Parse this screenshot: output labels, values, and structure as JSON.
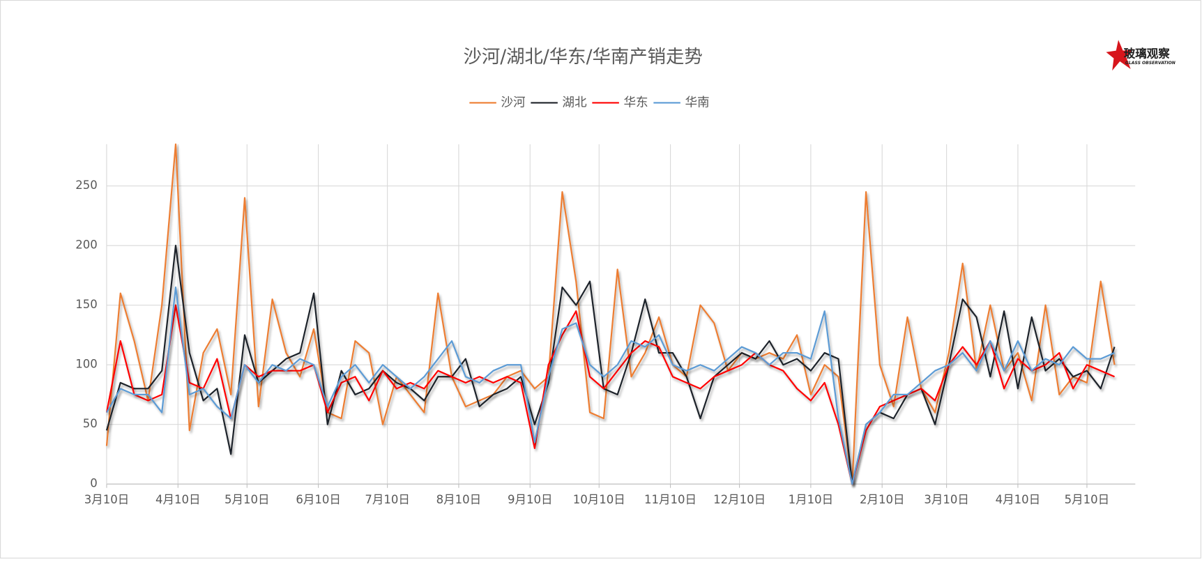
{
  "chart_data": {
    "type": "line",
    "title": "沙河/湖北/华东/华南产销走势",
    "logo": {
      "name": "玻璃观察",
      "sub": "GLASS OBSERVATION"
    },
    "x": [
      0,
      6,
      12,
      18,
      24,
      30,
      36,
      42,
      48,
      54,
      60,
      66,
      72,
      78,
      84,
      90,
      96,
      102,
      108,
      114,
      120,
      126,
      132,
      138,
      144,
      150,
      156,
      162,
      168,
      174,
      180,
      186,
      192,
      198,
      204,
      210,
      216,
      222,
      228,
      234,
      240,
      246,
      252,
      258,
      264,
      270,
      276,
      282,
      288,
      294,
      300,
      306,
      312,
      318,
      324,
      330,
      336,
      342,
      348,
      354,
      360,
      366,
      372,
      378,
      384,
      390,
      396,
      402,
      408,
      414,
      420,
      426,
      432,
      438
    ],
    "xlim": [
      0,
      447
    ],
    "xticks": [
      {
        "value": 0,
        "label": "3月10日"
      },
      {
        "value": 31,
        "label": "4月10日"
      },
      {
        "value": 61,
        "label": "5月10日"
      },
      {
        "value": 92,
        "label": "6月10日"
      },
      {
        "value": 122,
        "label": "7月10日"
      },
      {
        "value": 153,
        "label": "8月10日"
      },
      {
        "value": 184,
        "label": "9月10日"
      },
      {
        "value": 214,
        "label": "10月10日"
      },
      {
        "value": 245,
        "label": "11月10日"
      },
      {
        "value": 275,
        "label": "12月10日"
      },
      {
        "value": 306,
        "label": "1月10日"
      },
      {
        "value": 337,
        "label": "2月10日"
      },
      {
        "value": 365,
        "label": "3月10日"
      },
      {
        "value": 396,
        "label": "4月10日"
      },
      {
        "value": 426,
        "label": "5月10日"
      }
    ],
    "ylim": [
      0,
      285
    ],
    "yticks": [
      0,
      50,
      100,
      150,
      200,
      250
    ],
    "grid": true,
    "legend": "top",
    "series": [
      {
        "name": "沙河",
        "color": "#ed7d31",
        "values": [
          32,
          160,
          120,
          70,
          150,
          285,
          45,
          110,
          130,
          75,
          240,
          65,
          155,
          110,
          90,
          130,
          60,
          55,
          120,
          110,
          50,
          90,
          75,
          60,
          160,
          90,
          65,
          70,
          75,
          90,
          95,
          80,
          90,
          245,
          170,
          60,
          55,
          180,
          90,
          110,
          140,
          100,
          90,
          150,
          135,
          95,
          110,
          105,
          110,
          105,
          125,
          75,
          100,
          90,
          0,
          245,
          100,
          65,
          140,
          80,
          60,
          110,
          185,
          95,
          150,
          95,
          110,
          70,
          150,
          75,
          90,
          85,
          170,
          100
        ]
      },
      {
        "name": "湖北",
        "color": "#1f2329",
        "values": [
          45,
          85,
          80,
          80,
          95,
          200,
          110,
          70,
          80,
          25,
          125,
          85,
          95,
          105,
          110,
          160,
          50,
          95,
          75,
          80,
          95,
          85,
          80,
          70,
          90,
          90,
          105,
          65,
          75,
          80,
          90,
          50,
          85,
          165,
          150,
          170,
          80,
          75,
          110,
          155,
          110,
          110,
          90,
          55,
          90,
          100,
          110,
          105,
          120,
          100,
          105,
          95,
          110,
          105,
          0,
          50,
          60,
          55,
          75,
          80,
          50,
          100,
          155,
          140,
          90,
          145,
          80,
          140,
          95,
          105,
          90,
          95,
          80,
          115
        ]
      },
      {
        "name": "华东",
        "color": "#ff0000",
        "values": [
          60,
          120,
          75,
          70,
          75,
          150,
          85,
          80,
          105,
          55,
          100,
          90,
          95,
          95,
          95,
          100,
          60,
          85,
          90,
          70,
          95,
          80,
          85,
          80,
          95,
          90,
          85,
          90,
          85,
          90,
          85,
          30,
          100,
          125,
          145,
          90,
          80,
          95,
          110,
          120,
          115,
          90,
          85,
          80,
          90,
          95,
          100,
          110,
          100,
          95,
          80,
          70,
          85,
          50,
          0,
          45,
          65,
          70,
          75,
          80,
          70,
          100,
          115,
          100,
          120,
          80,
          105,
          95,
          100,
          110,
          80,
          100,
          95,
          90
        ]
      },
      {
        "name": "华南",
        "color": "#5b9bd5",
        "values": [
          60,
          80,
          75,
          75,
          60,
          165,
          75,
          80,
          65,
          55,
          100,
          85,
          100,
          95,
          105,
          100,
          65,
          90,
          100,
          85,
          100,
          90,
          80,
          90,
          105,
          120,
          90,
          85,
          95,
          100,
          100,
          35,
          90,
          130,
          135,
          100,
          90,
          100,
          120,
          115,
          125,
          100,
          95,
          100,
          95,
          105,
          115,
          110,
          100,
          110,
          110,
          105,
          145,
          55,
          0,
          50,
          60,
          75,
          75,
          85,
          95,
          100,
          110,
          95,
          120,
          95,
          120,
          95,
          105,
          100,
          115,
          105,
          105,
          110
        ]
      }
    ]
  }
}
